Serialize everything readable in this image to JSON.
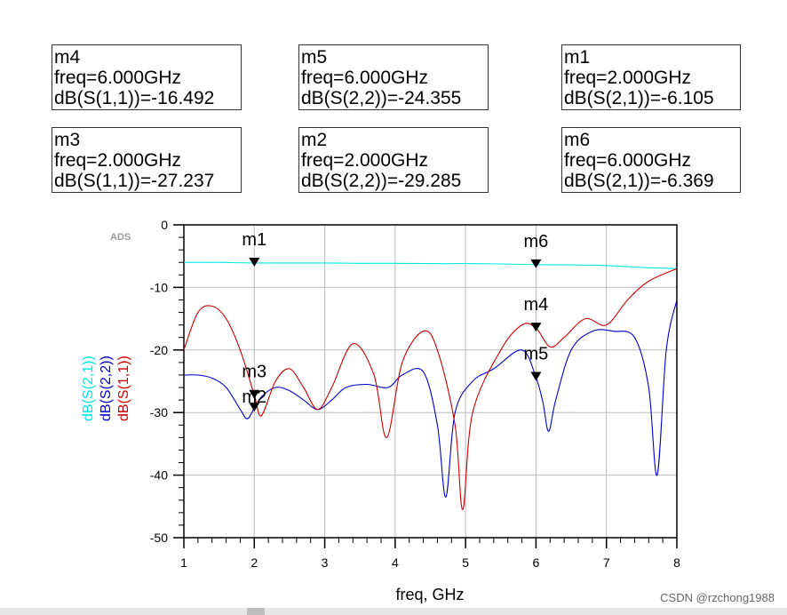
{
  "markers": [
    {
      "name": "m4",
      "freq_text": "freq=6.000GHz",
      "value_text": "dB(S(1,1))=-16.492"
    },
    {
      "name": "m5",
      "freq_text": "freq=6.000GHz",
      "value_text": "dB(S(2,2))=-24.355"
    },
    {
      "name": "m1",
      "freq_text": "freq=2.000GHz",
      "value_text": "dB(S(2,1))=-6.105"
    },
    {
      "name": "m3",
      "freq_text": "freq=2.000GHz",
      "value_text": "dB(S(1,1))=-27.237"
    },
    {
      "name": "m2",
      "freq_text": "freq=2.000GHz",
      "value_text": "dB(S(2,2))=-29.285"
    },
    {
      "name": "m6",
      "freq_text": "freq=6.000GHz",
      "value_text": "dB(S(2,1))=-6.369"
    }
  ],
  "watermark": "CSDN @rzchong1988",
  "chart_data": {
    "type": "line",
    "brand_label": "ADS",
    "xlabel": "freq, GHz",
    "xlim": [
      1,
      8
    ],
    "ylim": [
      -50,
      0
    ],
    "xticks": [
      1,
      2,
      3,
      4,
      5,
      6,
      7,
      8
    ],
    "yticks": [
      0,
      -10,
      -20,
      -30,
      -40,
      -50
    ],
    "grid": true,
    "series": [
      {
        "name": "dB(S(2,1))",
        "color": "#00e6e6",
        "x": [
          1,
          1.5,
          2,
          2.5,
          3,
          3.5,
          4,
          4.5,
          5,
          5.5,
          6,
          6.5,
          7,
          7.5,
          8
        ],
        "y": [
          -6.0,
          -6.0,
          -6.1,
          -6.1,
          -6.1,
          -6.15,
          -6.15,
          -6.2,
          -6.2,
          -6.25,
          -6.37,
          -6.4,
          -6.5,
          -6.8,
          -7.0
        ]
      },
      {
        "name": "dB(S(2,2))",
        "color": "#0000cc",
        "x": [
          1,
          1.2,
          1.4,
          1.6,
          1.8,
          1.9,
          2,
          2.1,
          2.3,
          2.5,
          2.7,
          2.9,
          3.1,
          3.3,
          3.6,
          3.9,
          4.1,
          4.4,
          4.6,
          4.72,
          4.85,
          5.1,
          5.4,
          5.8,
          6,
          6.1,
          6.18,
          6.28,
          6.5,
          6.8,
          7.1,
          7.4,
          7.6,
          7.72,
          7.85,
          8
        ],
        "y": [
          -24,
          -24,
          -24.5,
          -26,
          -29.5,
          -31,
          -29.3,
          -27.5,
          -26,
          -26.5,
          -28,
          -29.5,
          -28,
          -26,
          -25.5,
          -26,
          -24,
          -23.5,
          -32,
          -43.5,
          -30,
          -25,
          -23,
          -20,
          -24.4,
          -28.5,
          -33,
          -28,
          -20,
          -17,
          -17,
          -18,
          -26,
          -40,
          -20,
          -12
        ]
      },
      {
        "name": "dB(S(1,1))",
        "color": "#cc0000",
        "x": [
          1,
          1.2,
          1.4,
          1.6,
          1.8,
          2,
          2.1,
          2.3,
          2.5,
          2.7,
          2.9,
          3.1,
          3.4,
          3.7,
          3.88,
          4.1,
          4.4,
          4.6,
          4.85,
          4.96,
          5.1,
          5.5,
          5.8,
          6,
          6.2,
          6.4,
          6.7,
          7,
          7.3,
          7.6,
          8
        ],
        "y": [
          -20,
          -14,
          -13,
          -15,
          -20,
          -27.2,
          -30.5,
          -25,
          -23,
          -26,
          -29.5,
          -26,
          -19,
          -24,
          -34,
          -22,
          -17,
          -20,
          -32,
          -45.5,
          -30,
          -20,
          -16,
          -16.5,
          -19.5,
          -18,
          -15,
          -16,
          -12,
          -9,
          -7
        ]
      }
    ],
    "marker_points": [
      {
        "label": "m1",
        "x": 2,
        "y": -6.105
      },
      {
        "label": "m6",
        "x": 6,
        "y": -6.369
      },
      {
        "label": "m4",
        "x": 6,
        "y": -16.492
      },
      {
        "label": "m5",
        "x": 6,
        "y": -24.355
      },
      {
        "label": "m3",
        "x": 2,
        "y": -27.237
      },
      {
        "label": "m2",
        "x": 2,
        "y": -29.285
      }
    ]
  }
}
